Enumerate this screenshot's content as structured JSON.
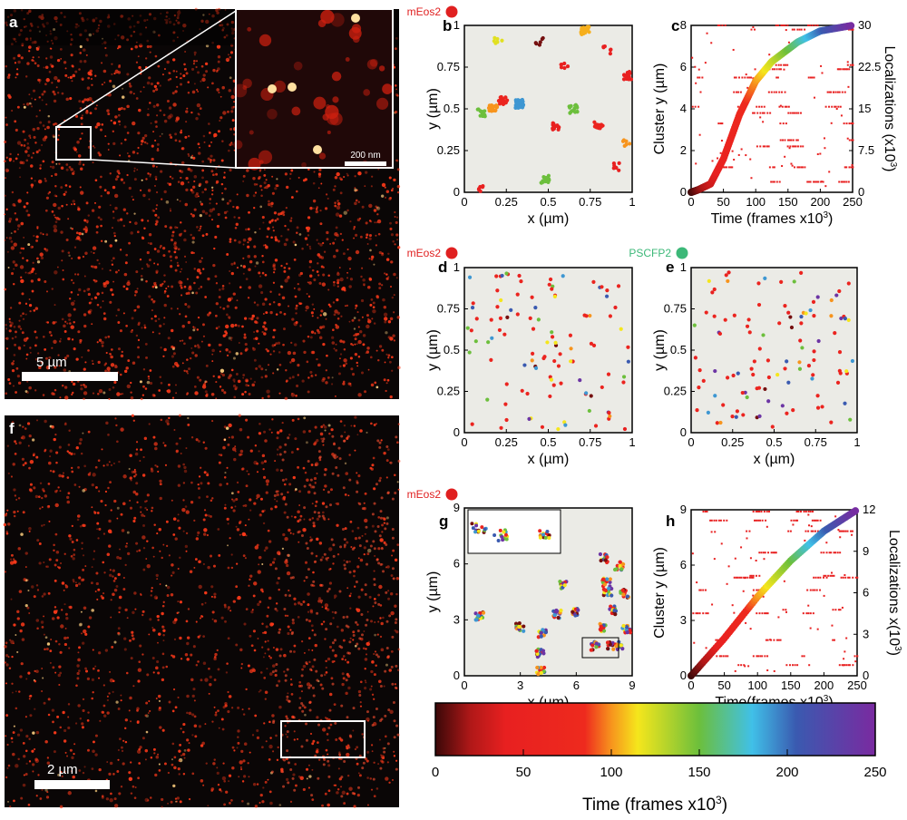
{
  "panels": {
    "a": "a",
    "b": "b",
    "c": "c",
    "d": "d",
    "e": "e",
    "f": "f",
    "g": "g",
    "h": "h"
  },
  "scale_bars": {
    "a": "5 µm",
    "a_inset": "200 nm",
    "f": "2 µm"
  },
  "labels": {
    "mEos2": "mEos2",
    "PSCFP2": "PSCFP2"
  },
  "colors": {
    "mEos2": "#e02020",
    "PSCFP2": "#3cb878",
    "plot_bg": "#ebebe6",
    "image_dot": "#ff3a1a"
  },
  "colorbar": {
    "title": "Time (frames x10",
    "title_sup": "3",
    "title_end": ")",
    "ticks": [
      "0",
      "50",
      "100",
      "150",
      "200",
      "250"
    ],
    "range": [
      0,
      250
    ],
    "stops": [
      [
        0,
        "#3a0808"
      ],
      [
        20,
        "#b01818"
      ],
      [
        40,
        "#e82020"
      ],
      [
        85,
        "#ee2a1e"
      ],
      [
        100,
        "#f7941d"
      ],
      [
        115,
        "#f5e61c"
      ],
      [
        150,
        "#6cbf3c"
      ],
      [
        180,
        "#40c0e8"
      ],
      [
        205,
        "#3a5ab0"
      ],
      [
        250,
        "#7a2aa0"
      ]
    ]
  },
  "chart_data": [
    {
      "id": "b",
      "type": "scatter",
      "title": "mEos2",
      "xlabel": "x (µm)",
      "ylabel": "y (µm)",
      "xlim": [
        0,
        1
      ],
      "ylim": [
        0,
        1
      ],
      "xticks": [
        "0",
        "0.25",
        "0.5",
        "0.75",
        "1"
      ],
      "yticks": [
        "0",
        "0.25",
        "0.5",
        "0.75",
        "1"
      ],
      "clusters": [
        {
          "x": 0.33,
          "y": 0.53,
          "n": 45,
          "t": 190
        },
        {
          "x": 0.17,
          "y": 0.5,
          "n": 25,
          "t": 100
        },
        {
          "x": 0.23,
          "y": 0.55,
          "n": 20,
          "t": 60
        },
        {
          "x": 0.72,
          "y": 0.97,
          "n": 20,
          "t": 105
        },
        {
          "x": 0.97,
          "y": 0.7,
          "n": 15,
          "t": 40
        },
        {
          "x": 0.48,
          "y": 0.08,
          "n": 15,
          "t": 150
        },
        {
          "x": 0.65,
          "y": 0.5,
          "n": 15,
          "t": 150
        },
        {
          "x": 0.1,
          "y": 0.48,
          "n": 12,
          "t": 150
        },
        {
          "x": 0.55,
          "y": 0.4,
          "n": 15,
          "t": 40
        },
        {
          "x": 0.8,
          "y": 0.4,
          "n": 12,
          "t": 60
        },
        {
          "x": 0.2,
          "y": 0.9,
          "n": 6,
          "t": 120
        },
        {
          "x": 0.45,
          "y": 0.9,
          "n": 6,
          "t": 10
        },
        {
          "x": 0.6,
          "y": 0.75,
          "n": 6,
          "t": 40
        },
        {
          "x": 0.85,
          "y": 0.85,
          "n": 6,
          "t": 40
        },
        {
          "x": 0.1,
          "y": 0.03,
          "n": 6,
          "t": 40
        },
        {
          "x": 0.97,
          "y": 0.3,
          "n": 6,
          "t": 100
        },
        {
          "x": 0.9,
          "y": 0.15,
          "n": 6,
          "t": 40
        }
      ]
    },
    {
      "id": "c",
      "type": "scatter",
      "xlabel": "Time (frames x10",
      "xlabel_sup": "3",
      "xlabel_end": ")",
      "ylabel": "Cluster y (µm)",
      "ylabel2": "Localizations (x10",
      "ylabel2_sup": "3",
      "ylabel2_end": ")",
      "xlim": [
        0,
        250
      ],
      "ylim": [
        0,
        8
      ],
      "y2lim": [
        0,
        30
      ],
      "xticks": [
        "0",
        "50",
        "100",
        "150",
        "200",
        "250"
      ],
      "yticks": [
        "0",
        "2",
        "4",
        "6",
        "8"
      ],
      "y2ticks": [
        "0",
        "7.5",
        "15",
        "22.5",
        "30"
      ],
      "streaks_y": [
        0.5,
        1.2,
        2.2,
        2.5,
        3.3,
        3.8,
        4.1,
        4.8,
        5.5,
        5.9,
        6.1,
        8.0,
        7.8
      ],
      "cumulative": [
        [
          0,
          0
        ],
        [
          10,
          0.4
        ],
        [
          30,
          1.5
        ],
        [
          50,
          6
        ],
        [
          75,
          14
        ],
        [
          100,
          20
        ],
        [
          125,
          23.5
        ],
        [
          165,
          27
        ],
        [
          200,
          29
        ],
        [
          250,
          30
        ]
      ]
    },
    {
      "id": "d",
      "type": "scatter",
      "title": "mEos2",
      "xlabel": "x (µm)",
      "ylabel": "y (µm)",
      "xlim": [
        0,
        1
      ],
      "ylim": [
        0,
        1
      ],
      "xticks": [
        "0",
        "0.25",
        "0.5",
        "0.75",
        "1"
      ],
      "yticks": [
        "0",
        "0.25",
        "0.5",
        "0.75",
        "1"
      ],
      "random_points": 110
    },
    {
      "id": "e",
      "type": "scatter",
      "title": "PSCFP2",
      "xlabel": "x (µm)",
      "ylabel": "y (µm)",
      "xlim": [
        0,
        1
      ],
      "ylim": [
        0,
        1
      ],
      "xticks": [
        "0",
        "0.25",
        "0.5",
        "0.75",
        "1"
      ],
      "yticks": [
        "0",
        "0.25",
        "0.5",
        "0.75",
        "1"
      ],
      "random_points": 110
    },
    {
      "id": "g",
      "type": "scatter",
      "title": "mEos2",
      "xlabel": "x (µm)",
      "ylabel": "y (µm)",
      "xlim": [
        0,
        9
      ],
      "ylim": [
        0,
        9
      ],
      "xticks": [
        "0",
        "3",
        "6",
        "9"
      ],
      "yticks": [
        "0",
        "3",
        "6",
        "9"
      ],
      "clusters": [
        {
          "x": 7.5,
          "y": 6.3
        },
        {
          "x": 8.3,
          "y": 5.9
        },
        {
          "x": 7.6,
          "y": 5.0
        },
        {
          "x": 7.7,
          "y": 4.5
        },
        {
          "x": 8.6,
          "y": 4.4
        },
        {
          "x": 8.0,
          "y": 3.5
        },
        {
          "x": 7.5,
          "y": 2.6
        },
        {
          "x": 8.7,
          "y": 2.5
        },
        {
          "x": 5.3,
          "y": 4.9
        },
        {
          "x": 5.0,
          "y": 3.3
        },
        {
          "x": 5.9,
          "y": 3.4
        },
        {
          "x": 3.0,
          "y": 2.6
        },
        {
          "x": 4.2,
          "y": 2.3
        },
        {
          "x": 4.1,
          "y": 1.2
        },
        {
          "x": 4.1,
          "y": 0.3
        },
        {
          "x": 0.8,
          "y": 3.2
        },
        {
          "x": 7.0,
          "y": 1.6
        },
        {
          "x": 7.8,
          "y": 1.6
        },
        {
          "x": 8.3,
          "y": 1.6
        }
      ]
    },
    {
      "id": "h",
      "type": "scatter",
      "xlabel": "Time(frames x10",
      "xlabel_sup": "3",
      "xlabel_end": ")",
      "ylabel": "Cluster y (µm)",
      "ylabel2": "Localizations x(10",
      "ylabel2_sup": "3",
      "ylabel2_end": ")",
      "xlim": [
        0,
        250
      ],
      "ylim": [
        0,
        9.3
      ],
      "y2lim": [
        0,
        12.4
      ],
      "xticks": [
        "0",
        "50",
        "100",
        "150",
        "200",
        "250"
      ],
      "yticks": [
        "0",
        "3",
        "6",
        "9"
      ],
      "y2ticks": [
        "0",
        "3",
        "6",
        "9",
        "12"
      ],
      "streaks_y": [
        0.6,
        1.1,
        2.0,
        3.5,
        3.7,
        4.8,
        5.5,
        5.6,
        6.9,
        8.1,
        8.7,
        9.2
      ],
      "cumulative": [
        [
          0,
          0
        ],
        [
          50,
          2.8
        ],
        [
          100,
          5.9
        ],
        [
          150,
          8.6
        ],
        [
          200,
          10.8
        ],
        [
          250,
          12.4
        ]
      ]
    }
  ]
}
